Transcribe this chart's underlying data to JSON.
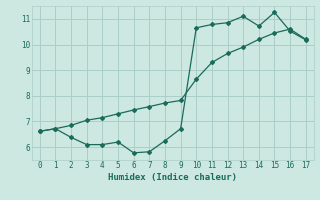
{
  "title": "",
  "xlabel": "Humidex (Indice chaleur)",
  "bg_color": "#cce8e0",
  "grid_color": "#aacfc8",
  "line_color": "#1a6b5a",
  "xlim": [
    -0.5,
    17.5
  ],
  "ylim": [
    5.5,
    11.5
  ],
  "xticks": [
    0,
    1,
    2,
    3,
    4,
    5,
    6,
    7,
    8,
    9,
    10,
    11,
    12,
    13,
    14,
    15,
    16,
    17
  ],
  "yticks": [
    6,
    7,
    8,
    9,
    10,
    11
  ],
  "line1_x": [
    0,
    1,
    2,
    3,
    4,
    5,
    6,
    7,
    8,
    9,
    10,
    11,
    12,
    13,
    14,
    15,
    16,
    17
  ],
  "line1_y": [
    6.62,
    6.72,
    6.85,
    7.05,
    7.15,
    7.3,
    7.45,
    7.58,
    7.72,
    7.82,
    8.65,
    9.3,
    9.65,
    9.9,
    10.2,
    10.45,
    10.6,
    10.2
  ],
  "line2_x": [
    0,
    1,
    2,
    3,
    4,
    5,
    6,
    7,
    8,
    9,
    10,
    11,
    12,
    13,
    14,
    15,
    16,
    17
  ],
  "line2_y": [
    6.62,
    6.72,
    6.38,
    6.1,
    6.1,
    6.2,
    5.78,
    5.82,
    6.25,
    6.72,
    10.65,
    10.78,
    10.85,
    11.1,
    10.72,
    11.25,
    10.52,
    10.18
  ]
}
